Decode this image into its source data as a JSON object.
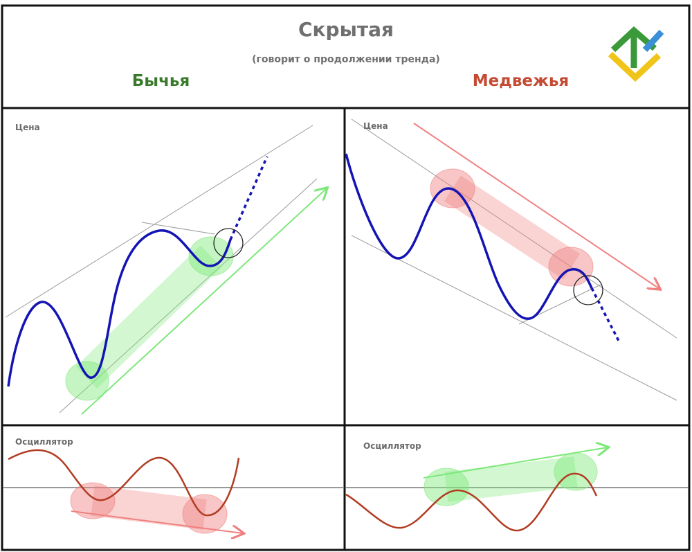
{
  "header": {
    "title": "Скрытая",
    "subtitle": "(говорит о продолжении тренда)",
    "bullish_label": "Бычья",
    "bearish_label": "Медвежья"
  },
  "panels": {
    "bull_price_label": "Цена",
    "bear_price_label": "Цена",
    "bull_osc_label": "Осциллятор",
    "bear_osc_label": "Осциллятор"
  },
  "colors": {
    "bullish": "#3a7a2c",
    "bearish": "#c44a33",
    "price_line": "#1414b4",
    "oscillator_line": "#b13c22",
    "green_highlight": "#7ee87a",
    "red_highlight": "#f08080",
    "logo_green": "#3a9a3a",
    "logo_yellow": "#f0c419",
    "logo_blue": "#3b8fd9"
  },
  "icons": {
    "logo": "brand-logo-icon"
  }
}
